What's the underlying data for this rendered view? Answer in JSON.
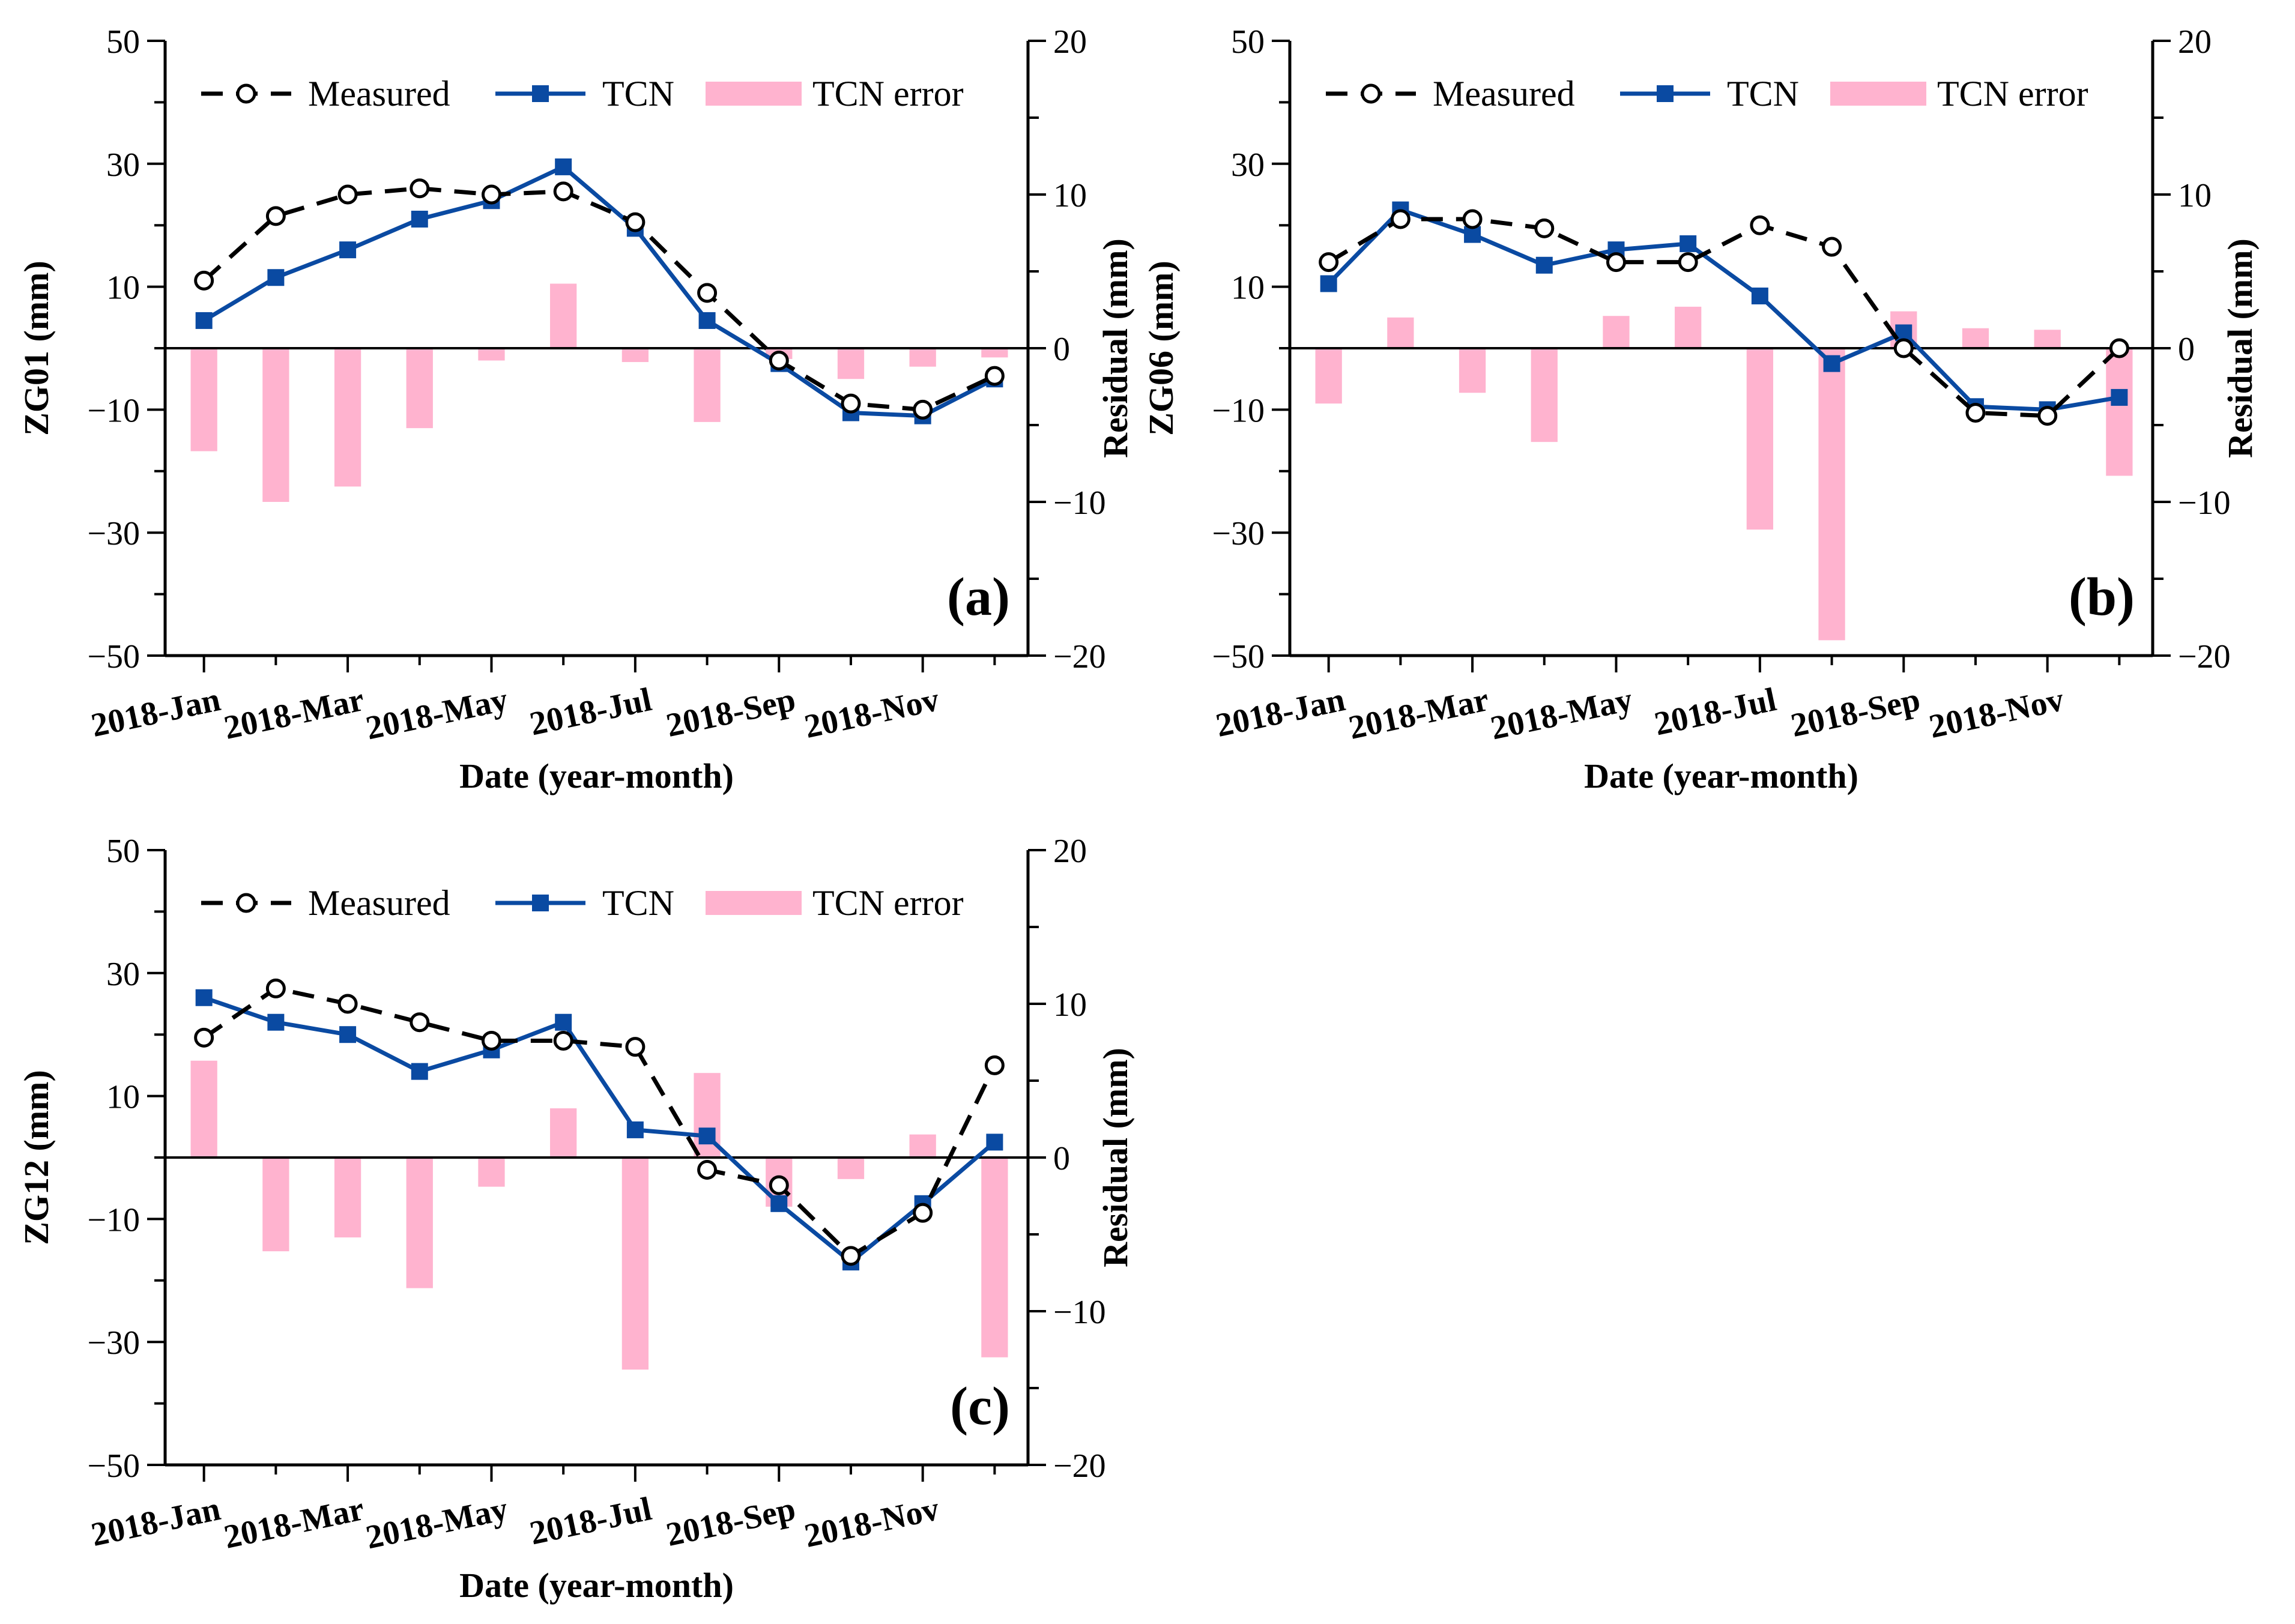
{
  "colors": {
    "measured": "#000000",
    "tcn": "#0a4aa2",
    "error": "#ffb3cf",
    "axis": "#000000"
  },
  "chart_data": [
    {
      "type": "line+bar",
      "panel_label": "(a)",
      "ylabel": "ZG01 (mm)",
      "ylabel_right": "Residual (mm)",
      "xlabel": "Date (year-month)",
      "ylim": [
        -50,
        50
      ],
      "ylim_right": [
        -20,
        20
      ],
      "yticks": [
        "50",
        "30",
        "10",
        "−10",
        "−30",
        "−50"
      ],
      "yticks_right": [
        "20",
        "10",
        "0",
        "−10",
        "−20"
      ],
      "xtick_labels": [
        "2018-Jan",
        "2018-Mar",
        "2018-May",
        "2018-Jul",
        "2018-Sep",
        "2018-Nov"
      ],
      "categories": [
        "2018-Jan",
        "2018-Feb",
        "2018-Mar",
        "2018-Apr",
        "2018-May",
        "2018-Jun",
        "2018-Jul",
        "2018-Aug",
        "2018-Sep",
        "2018-Oct",
        "2018-Nov",
        "2018-Dec"
      ],
      "legend": [
        "Measured",
        "TCN",
        "TCN error"
      ],
      "series": [
        {
          "name": "Measured",
          "values": [
            11,
            21.5,
            25,
            26,
            25,
            25.5,
            20.5,
            9,
            -2,
            -9,
            -10,
            -4.5
          ]
        },
        {
          "name": "TCN",
          "values": [
            4.5,
            11.5,
            16,
            21,
            24,
            29.5,
            19.5,
            4.5,
            -2.5,
            -10.5,
            -11,
            -5
          ]
        },
        {
          "name": "TCN error",
          "axis": "right",
          "values": [
            -6.7,
            -10,
            -9,
            -5.2,
            -0.8,
            4.2,
            -0.9,
            -4.8,
            -0.7,
            -2,
            -1.2,
            -0.6
          ]
        }
      ]
    },
    {
      "type": "line+bar",
      "panel_label": "(b)",
      "ylabel": "ZG06 (mm)",
      "ylabel_right": "Residual (mm)",
      "xlabel": "Date (year-month)",
      "ylim": [
        -50,
        50
      ],
      "ylim_right": [
        -20,
        20
      ],
      "yticks": [
        "50",
        "30",
        "10",
        "−10",
        "−30",
        "−50"
      ],
      "yticks_right": [
        "20",
        "10",
        "0",
        "−10",
        "−20"
      ],
      "xtick_labels": [
        "2018-Jan",
        "2018-Mar",
        "2018-May",
        "2018-Jul",
        "2018-Sep",
        "2018-Nov"
      ],
      "categories": [
        "2018-Jan",
        "2018-Feb",
        "2018-Mar",
        "2018-Apr",
        "2018-May",
        "2018-Jun",
        "2018-Jul",
        "2018-Aug",
        "2018-Sep",
        "2018-Oct",
        "2018-Nov",
        "2018-Dec"
      ],
      "legend": [
        "Measured",
        "TCN",
        "TCN error"
      ],
      "series": [
        {
          "name": "Measured",
          "values": [
            14,
            21,
            21,
            19.5,
            14,
            14,
            20,
            16.5,
            0,
            -10.5,
            -11,
            0
          ]
        },
        {
          "name": "TCN",
          "values": [
            10.5,
            22.5,
            18.5,
            13.5,
            16,
            17,
            8.5,
            -2.5,
            2.5,
            -9.5,
            -10,
            -8
          ]
        },
        {
          "name": "TCN error",
          "axis": "right",
          "values": [
            -3.6,
            2,
            -2.9,
            -6.1,
            2.1,
            2.7,
            -11.8,
            -19,
            2.4,
            1.3,
            1.2,
            -8.3
          ]
        }
      ]
    },
    {
      "type": "line+bar",
      "panel_label": "(c)",
      "ylabel": "ZG12 (mm)",
      "ylabel_right": "Residual (mm)",
      "xlabel": "Date (year-month)",
      "ylim": [
        -50,
        50
      ],
      "ylim_right": [
        -20,
        20
      ],
      "yticks": [
        "50",
        "30",
        "10",
        "−10",
        "−30",
        "−50"
      ],
      "yticks_right": [
        "20",
        "10",
        "0",
        "−10",
        "−20"
      ],
      "xtick_labels": [
        "2018-Jan",
        "2018-Mar",
        "2018-May",
        "2018-Jul",
        "2018-Sep",
        "2018-Nov"
      ],
      "categories": [
        "2018-Jan",
        "2018-Feb",
        "2018-Mar",
        "2018-Apr",
        "2018-May",
        "2018-Jun",
        "2018-Jul",
        "2018-Aug",
        "2018-Sep",
        "2018-Oct",
        "2018-Nov",
        "2018-Dec"
      ],
      "legend": [
        "Measured",
        "TCN",
        "TCN error"
      ],
      "series": [
        {
          "name": "Measured",
          "values": [
            19.5,
            27.5,
            25,
            22,
            19,
            19,
            18,
            -2,
            -4.5,
            -16,
            -9,
            15
          ]
        },
        {
          "name": "TCN",
          "values": [
            26,
            22,
            20,
            14,
            17.5,
            22,
            4.5,
            3.5,
            -7.5,
            -17,
            -7.5,
            2.5
          ]
        },
        {
          "name": "TCN error",
          "axis": "right",
          "values": [
            6.3,
            -6.1,
            -5.2,
            -8.5,
            -1.9,
            3.2,
            -13.8,
            5.5,
            -3.2,
            -1.4,
            1.5,
            -13
          ]
        }
      ]
    }
  ]
}
